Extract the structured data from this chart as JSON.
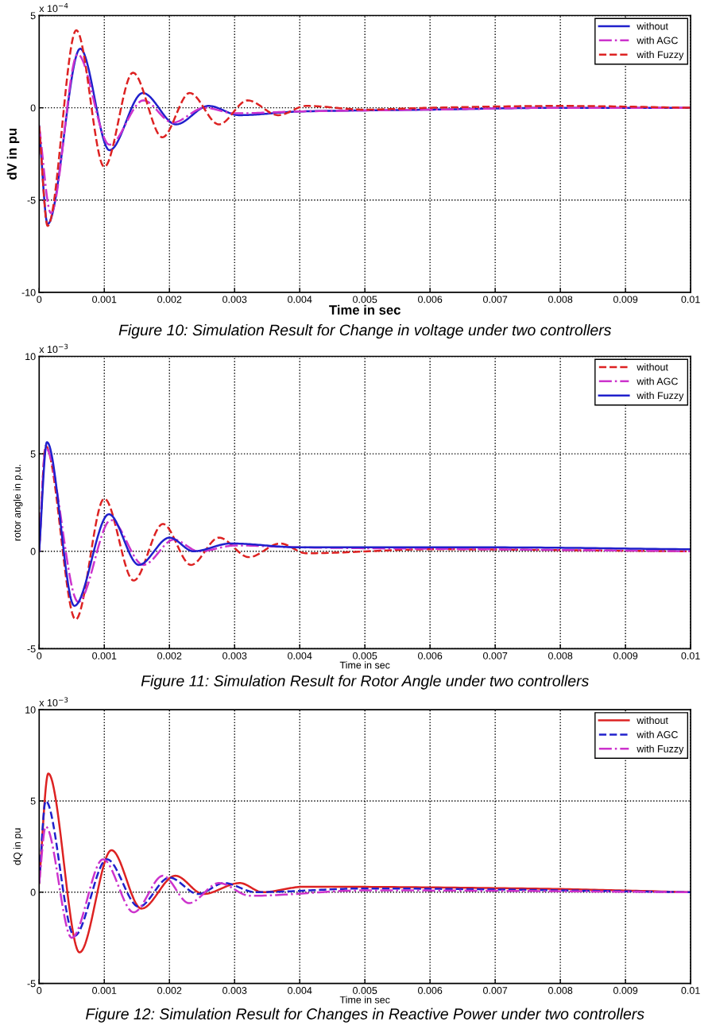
{
  "chart_data": [
    {
      "type": "line",
      "title": "Figure 10: Simulation Result for Change in voltage under two controllers",
      "xlabel": "Time in sec",
      "ylabel": "dV in pu",
      "annotations": [
        "x 10$^{−4}$"
      ],
      "xlim": [
        0,
        0.01
      ],
      "ylim": [
        -10,
        5
      ],
      "xticks": [
        0,
        0.001,
        0.002,
        0.003,
        0.004,
        0.005,
        0.006,
        0.007,
        0.008,
        0.009,
        0.01
      ],
      "yticks": [
        -10,
        -5,
        0,
        5
      ],
      "grid": true,
      "legend": "top right",
      "series": [
        {
          "name": "without",
          "color": "#2020cc",
          "line_style": "solid",
          "x": [
            0,
            0.00013,
            0.00063,
            0.00108,
            0.00159,
            0.0021,
            0.0026,
            0.00307,
            0.004,
            0.006,
            0.008,
            0.01
          ],
          "values": [
            -1,
            -6.3,
            3.2,
            -2.3,
            0.8,
            -0.9,
            0.1,
            -0.4,
            -0.2,
            -0.1,
            0,
            0
          ]
        },
        {
          "name": "with AGC",
          "color": "#cc33cc",
          "line_style": "dashdot",
          "x": [
            0,
            0.00018,
            0.00059,
            0.00108,
            0.0016,
            0.00205,
            0.00254,
            0.003,
            0.004,
            0.006,
            0.008,
            0.01
          ],
          "values": [
            -1,
            -5.7,
            2.9,
            -2.0,
            0.4,
            -0.8,
            0,
            -0.3,
            -0.2,
            -0.1,
            0,
            0
          ]
        },
        {
          "name": "with Fuzzy",
          "color": "#dd2222",
          "line_style": "dashed",
          "x": [
            0,
            0.00013,
            0.00057,
            0.001,
            0.00144,
            0.00189,
            0.00231,
            0.00276,
            0.0032,
            0.00367,
            0.0041,
            0.005,
            0.006,
            0.008,
            0.01
          ],
          "values": [
            -1,
            -6.4,
            4.2,
            -3.2,
            1.9,
            -1.6,
            0.8,
            -0.9,
            0.4,
            -0.4,
            0.1,
            -0.1,
            0,
            0.1,
            0
          ]
        }
      ]
    },
    {
      "type": "line",
      "title": "Figure 11: Simulation Result for Rotor Angle under two controllers",
      "xlabel": "Time in sec",
      "ylabel": "rotor angle in p.u.",
      "annotations": [
        "x 10$^{−3}$"
      ],
      "xlim": [
        0,
        0.01
      ],
      "ylim": [
        -5,
        10
      ],
      "xticks": [
        0,
        0.001,
        0.002,
        0.003,
        0.004,
        0.005,
        0.006,
        0.007,
        0.008,
        0.009,
        0.01
      ],
      "yticks": [
        -5,
        0,
        5,
        10
      ],
      "grid": true,
      "legend": "top right",
      "series": [
        {
          "name": "without",
          "color": "#dd2222",
          "line_style": "dashed",
          "x": [
            0,
            0.0001,
            0.00056,
            0.001,
            0.00145,
            0.0019,
            0.00233,
            0.00276,
            0.00322,
            0.0037,
            0.0041,
            0.006,
            0.01
          ],
          "values": [
            0,
            5.4,
            -3.5,
            2.7,
            -1.5,
            1.4,
            -0.7,
            0.7,
            -0.3,
            0.4,
            -0.1,
            0.1,
            0
          ]
        },
        {
          "name": "with AGC",
          "color": "#cc33cc",
          "line_style": "dashdot",
          "x": [
            0,
            0.0001,
            0.0006,
            0.0011,
            0.0016,
            0.00207,
            0.00245,
            0.00302,
            0.004,
            0.007,
            0.01
          ],
          "values": [
            0,
            5.3,
            -2.6,
            1.6,
            -0.7,
            0.6,
            0,
            0.3,
            0.2,
            0.1,
            0
          ]
        },
        {
          "name": "with Fuzzy",
          "color": "#2020cc",
          "line_style": "solid",
          "x": [
            0,
            0.00012,
            0.00054,
            0.00107,
            0.00153,
            0.002,
            0.00237,
            0.00294,
            0.004,
            0.007,
            0.01
          ],
          "values": [
            0,
            5.6,
            -2.8,
            1.9,
            -0.7,
            0.7,
            0,
            0.4,
            0.2,
            0.2,
            0.1
          ]
        }
      ]
    },
    {
      "type": "line",
      "title": "Figure 12: Simulation Result for Changes in Reactive Power under two controllers",
      "xlabel": "Time in sec",
      "ylabel": "dQ in pu",
      "annotations": [
        "x 10$^{−3}$"
      ],
      "xlim": [
        0,
        0.01
      ],
      "ylim": [
        -5,
        10
      ],
      "xticks": [
        0,
        0.001,
        0.002,
        0.003,
        0.004,
        0.005,
        0.006,
        0.007,
        0.008,
        0.009,
        0.01
      ],
      "yticks": [
        -5,
        0,
        5,
        10
      ],
      "grid": true,
      "legend": "top right",
      "series": [
        {
          "name": "without",
          "color": "#dd2222",
          "line_style": "solid",
          "x": [
            0,
            0.00014,
            0.00062,
            0.00111,
            0.00157,
            0.00209,
            0.00252,
            0.00308,
            0.00343,
            0.00407,
            0.0075,
            0.01
          ],
          "values": [
            0.5,
            6.5,
            -3.3,
            2.3,
            -0.9,
            0.9,
            -0.1,
            0.5,
            0,
            0.3,
            0.2,
            0
          ]
        },
        {
          "name": "with AGC",
          "color": "#2020cc",
          "line_style": "dashed",
          "x": [
            0,
            0.0001,
            0.00054,
            0.00104,
            0.00153,
            0.002,
            0.00244,
            0.00284,
            0.00332,
            0.005,
            0.01
          ],
          "values": [
            0.5,
            5.0,
            -2.4,
            1.8,
            -0.8,
            0.8,
            -0.1,
            0.5,
            0,
            0.2,
            0
          ]
        },
        {
          "name": "with Fuzzy",
          "color": "#cc33cc",
          "line_style": "dashdot",
          "x": [
            0,
            0.0001,
            0.0005,
            0.00098,
            0.00145,
            0.0019,
            0.0023,
            0.00276,
            0.00324,
            0.005,
            0.01
          ],
          "values": [
            0.5,
            3.6,
            -2.5,
            1.8,
            -1.1,
            0.9,
            -0.6,
            0.5,
            -0.2,
            0.1,
            0
          ]
        }
      ]
    }
  ]
}
